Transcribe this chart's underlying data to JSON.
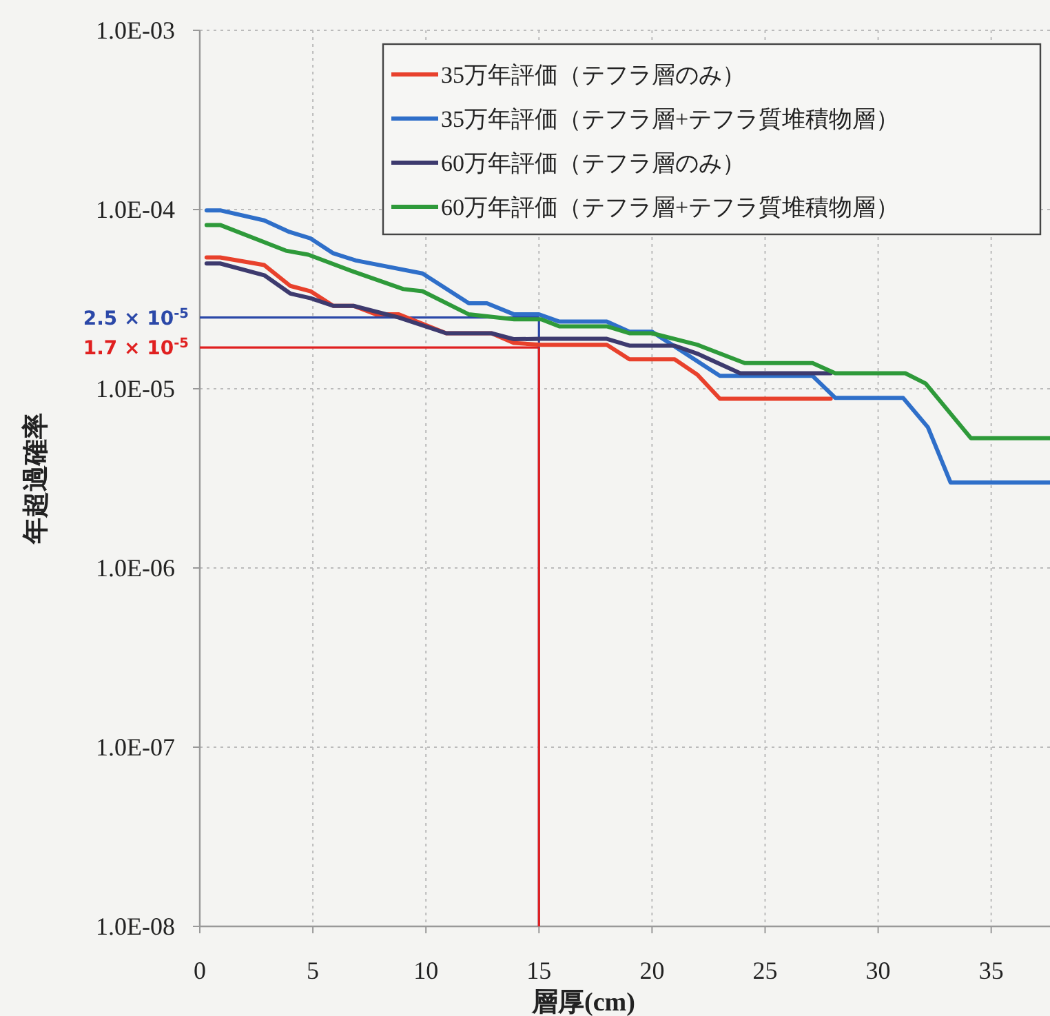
{
  "chart_data": {
    "type": "line",
    "xlabel": "層厚(cm)",
    "ylabel": "年超過確率",
    "log": "y",
    "grid": true,
    "legend": "top right",
    "line_style": "solid",
    "marker": "none",
    "xlim": [
      0,
      37.6
    ],
    "ylim": [
      1e-08,
      0.001
    ],
    "xticks": [
      0,
      5,
      10,
      15,
      20,
      25,
      30,
      35
    ],
    "yticks": [
      {
        "value": 1e-08,
        "label": "1.0E-08"
      },
      {
        "value": 1e-07,
        "label": "1.0E-07"
      },
      {
        "value": 1e-06,
        "label": "1.0E-06"
      },
      {
        "value": 1e-05,
        "label": "1.0E-05"
      },
      {
        "value": 0.0001,
        "label": "1.0E-04"
      },
      {
        "value": 0.001,
        "label": "1.0E-03"
      }
    ],
    "series": [
      {
        "name": "35万年評価（テフラ層のみ）",
        "color": "#e8412c",
        "x": [
          0.3,
          0.9,
          2.85,
          4.0,
          4.9,
          5.9,
          6.8,
          7.8,
          8.8,
          10.9,
          12.9,
          13.9,
          15.1,
          18.0,
          19.0,
          21.0,
          22.0,
          23.0,
          27.9
        ],
        "values": [
          5.4e-05,
          5.4e-05,
          4.9e-05,
          3.75e-05,
          3.5e-05,
          2.9e-05,
          2.9e-05,
          2.6e-05,
          2.6e-05,
          2.04e-05,
          2.04e-05,
          1.8e-05,
          1.76e-05,
          1.76e-05,
          1.46e-05,
          1.46e-05,
          1.2e-05,
          8.8e-06,
          8.8e-06
        ]
      },
      {
        "name": "35万年評価（テフラ層+テフラ質堆積物層）",
        "color": "#2f6fc9",
        "x": [
          0.3,
          0.9,
          2.85,
          3.96,
          4.9,
          5.9,
          6.9,
          9.85,
          11.9,
          12.7,
          13.9,
          15.0,
          15.9,
          18.0,
          19.0,
          20.0,
          23.0,
          27.1,
          28.1,
          31.1,
          32.2,
          33.2,
          37.6
        ],
        "values": [
          9.9e-05,
          9.9e-05,
          8.7e-05,
          7.5e-05,
          6.9e-05,
          5.7e-05,
          5.2e-05,
          4.4e-05,
          3e-05,
          3e-05,
          2.6e-05,
          2.6e-05,
          2.37e-05,
          2.37e-05,
          2.08e-05,
          2.08e-05,
          1.18e-05,
          1.18e-05,
          8.9e-06,
          8.9e-06,
          6.1e-06,
          3e-06,
          3e-06
        ]
      },
      {
        "name": "60万年評価（テフラ層のみ）",
        "color": "#3d3a6e",
        "x": [
          0.3,
          0.9,
          2.85,
          4.0,
          4.9,
          5.9,
          6.8,
          8.8,
          10.9,
          12.9,
          13.9,
          15.1,
          18.0,
          19.0,
          21.0,
          22.0,
          23.9,
          27.9
        ],
        "values": [
          5e-05,
          5e-05,
          4.3e-05,
          3.4e-05,
          3.2e-05,
          2.9e-05,
          2.9e-05,
          2.5e-05,
          2.04e-05,
          2.04e-05,
          1.89e-05,
          1.9e-05,
          1.9e-05,
          1.74e-05,
          1.74e-05,
          1.57e-05,
          1.22e-05,
          1.22e-05
        ]
      },
      {
        "name": "60万年評価（テフラ層+テフラ質堆積物層）",
        "color": "#2e9a3a",
        "x": [
          0.3,
          0.9,
          3.8,
          4.8,
          6.8,
          9.0,
          9.85,
          11.9,
          13.9,
          15.1,
          15.9,
          18.0,
          19.0,
          20.0,
          22.0,
          24.1,
          27.1,
          28.1,
          31.2,
          32.1,
          34.1,
          37.6
        ],
        "values": [
          8.2e-05,
          8.2e-05,
          5.9e-05,
          5.6e-05,
          4.5e-05,
          3.6e-05,
          3.5e-05,
          2.6e-05,
          2.44e-05,
          2.44e-05,
          2.23e-05,
          2.23e-05,
          2.04e-05,
          2.04e-05,
          1.76e-05,
          1.39e-05,
          1.39e-05,
          1.22e-05,
          1.22e-05,
          1.07e-05,
          5.3e-06,
          5.3e-06
        ]
      }
    ],
    "ref_lines": [
      {
        "axis": "y",
        "value": 2.5e-05,
        "label": "2.5 × 10$^{-5}$",
        "color": "#2b48a8"
      },
      {
        "axis": "y",
        "value": 1.7e-05,
        "label": "1.7 × 10$^{-5}$",
        "color": "#e02020"
      },
      {
        "axis": "x",
        "value": 15,
        "color": "#2b48a8"
      },
      {
        "axis": "x",
        "value": 15,
        "color": "#e02020"
      }
    ]
  }
}
